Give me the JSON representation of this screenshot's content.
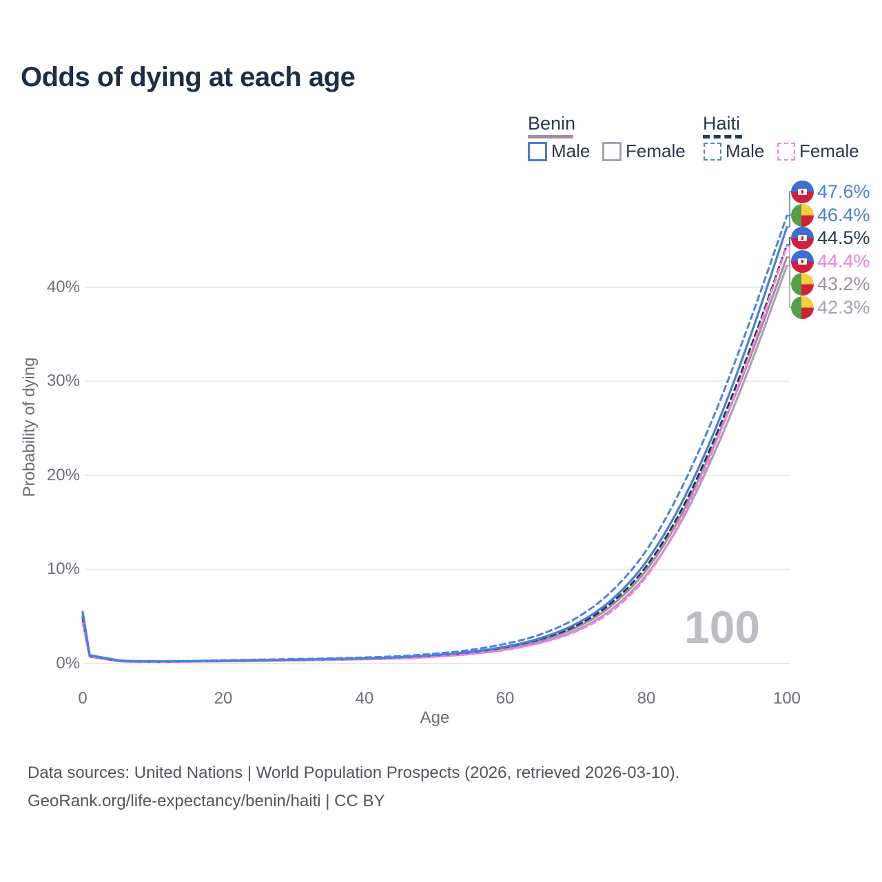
{
  "title": "Odds of dying at each age",
  "legend": {
    "benin_header": "Benin",
    "haiti_header": "Haiti",
    "benin_male_label": "Male",
    "benin_female_label": "Female",
    "haiti_male_label": "Male",
    "haiti_female_label": "Female"
  },
  "axes": {
    "y_title": "Probability of dying",
    "x_title": "Age",
    "y_ticks": [
      "0%",
      "10%",
      "20%",
      "30%",
      "40%"
    ],
    "x_ticks": [
      "0",
      "20",
      "40",
      "60",
      "80",
      "100"
    ]
  },
  "watermark_age": "100",
  "end_labels": [
    {
      "value": "47.6%",
      "country": "haiti",
      "series": "haiti_male"
    },
    {
      "value": "46.4%",
      "country": "benin",
      "series": "benin_male"
    },
    {
      "value": "44.5%",
      "country": "haiti",
      "series": "haiti_both"
    },
    {
      "value": "44.4%",
      "country": "haiti",
      "series": "haiti_female"
    },
    {
      "value": "43.2%",
      "country": "benin",
      "series": "benin_both"
    },
    {
      "value": "42.3%",
      "country": "benin",
      "series": "benin_female"
    }
  ],
  "footer": {
    "line1": "Data sources: United Nations | World Population Prospects (2026, retrieved 2026-03-10).",
    "line2": "GeoRank.org/life-expectancy/benin/haiti | CC BY"
  },
  "colors": {
    "title_text": "#1d2e49",
    "legend_text": "#2b3750",
    "axis_text": "#716c7c",
    "footer_text": "#56525f",
    "gridline": "#eae8ed",
    "watermark": "#bfbdc4"
  },
  "chart_data": {
    "type": "line",
    "title": "Odds of dying at each age",
    "xlabel": "Age",
    "ylabel": "Probability of dying",
    "xlim": [
      0,
      100
    ],
    "ylim": [
      0,
      48
    ],
    "x_ticks": [
      0,
      20,
      40,
      60,
      80,
      100
    ],
    "y_ticks_pct": [
      0,
      10,
      20,
      30,
      40
    ],
    "grid": "horizontal-only",
    "legend_position": "top-right",
    "current_age_frame": 100,
    "ages": [
      0,
      1,
      5,
      10,
      15,
      20,
      25,
      30,
      35,
      40,
      45,
      50,
      55,
      60,
      65,
      70,
      75,
      80,
      85,
      90,
      95,
      100
    ],
    "series": [
      {
        "name": "benin_female",
        "country": "Benin",
        "sex": "Female",
        "color": "#ab9fb2",
        "dashed": false,
        "values_pct": [
          4.5,
          0.78,
          0.3,
          0.2,
          0.21,
          0.24,
          0.28,
          0.33,
          0.39,
          0.46,
          0.56,
          0.74,
          1.02,
          1.5,
          2.25,
          3.5,
          5.7,
          9.4,
          15.1,
          22.9,
          32.1,
          42.3
        ],
        "end_value_pct": 42.3
      },
      {
        "name": "benin_both",
        "country": "Benin",
        "sex": "Both",
        "color": "#a28ca2",
        "dashed": false,
        "values_pct": [
          5.0,
          0.85,
          0.32,
          0.22,
          0.23,
          0.27,
          0.32,
          0.38,
          0.44,
          0.51,
          0.62,
          0.82,
          1.12,
          1.65,
          2.45,
          3.8,
          6.1,
          9.9,
          15.8,
          23.8,
          33.0,
          43.2
        ],
        "end_value_pct": 43.2
      },
      {
        "name": "haiti_both",
        "country": "Haiti",
        "sex": "Both",
        "color": "#253a52",
        "dashed": true,
        "values_pct": [
          4.8,
          0.75,
          0.28,
          0.2,
          0.24,
          0.3,
          0.36,
          0.41,
          0.47,
          0.55,
          0.67,
          0.88,
          1.2,
          1.75,
          2.6,
          4.0,
          6.4,
          10.3,
          16.3,
          24.4,
          33.9,
          44.5
        ],
        "end_value_pct": 44.5
      },
      {
        "name": "haiti_female",
        "country": "Haiti",
        "sex": "Female",
        "color": "#fc7de6",
        "dashed": true,
        "values_pct": [
          4.3,
          0.7,
          0.25,
          0.18,
          0.2,
          0.25,
          0.3,
          0.35,
          0.4,
          0.46,
          0.55,
          0.72,
          1.0,
          1.45,
          2.2,
          3.4,
          5.5,
          9.2,
          15.3,
          23.6,
          33.4,
          44.4
        ],
        "end_value_pct": 44.4
      },
      {
        "name": "benin_male",
        "country": "Benin",
        "sex": "Male",
        "color": "#4a7fd6",
        "dashed": false,
        "values_pct": [
          5.5,
          0.9,
          0.35,
          0.25,
          0.26,
          0.3,
          0.36,
          0.42,
          0.48,
          0.56,
          0.68,
          0.9,
          1.25,
          1.8,
          2.7,
          4.2,
          6.7,
          10.8,
          17.0,
          25.2,
          35.2,
          46.4
        ],
        "end_value_pct": 46.4
      },
      {
        "name": "haiti_male",
        "country": "Haiti",
        "sex": "Male",
        "color": "#4a84e0",
        "dashed": true,
        "values_pct": [
          5.2,
          0.8,
          0.3,
          0.22,
          0.28,
          0.35,
          0.42,
          0.48,
          0.55,
          0.65,
          0.8,
          1.05,
          1.45,
          2.1,
          3.1,
          4.8,
          7.6,
          12.0,
          18.6,
          27.0,
          36.9,
          47.6
        ],
        "end_value_pct": 47.6
      }
    ]
  }
}
